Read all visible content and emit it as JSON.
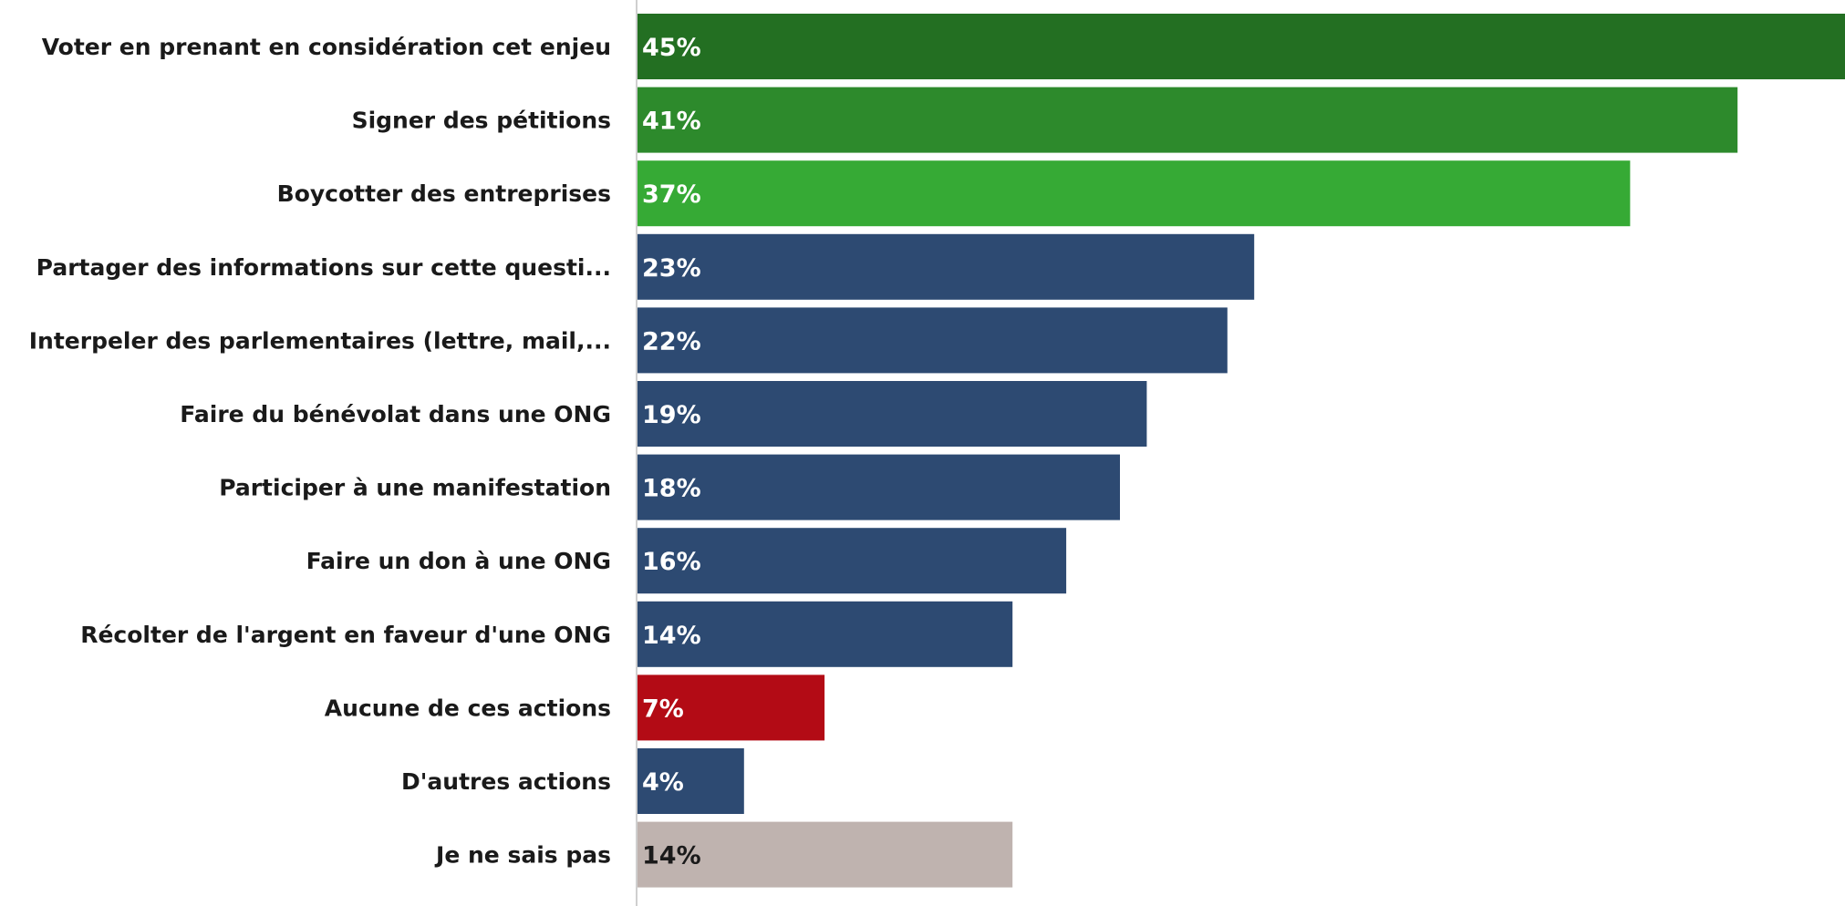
{
  "chart_data": {
    "type": "bar",
    "orientation": "horizontal",
    "categories": [
      "Voter en prenant en considération cet enjeu",
      "Signer des pétitions",
      "Boycotter des entreprises",
      "Partager des informations sur cette questi...",
      "Interpeler des parlementaires (lettre, mail,...",
      "Faire du bénévolat dans une ONG",
      "Participer à une manifestation",
      "Faire un don à une ONG",
      "Récolter de l'argent en faveur d'une ONG",
      "Aucune de ces actions",
      "D'autres actions",
      "Je ne sais pas"
    ],
    "values": [
      45,
      41,
      37,
      23,
      22,
      19,
      18,
      16,
      14,
      7,
      4,
      14
    ],
    "value_labels": [
      "45%",
      "41%",
      "37%",
      "23%",
      "22%",
      "19%",
      "18%",
      "16%",
      "14%",
      "7%",
      "4%",
      "14%"
    ],
    "bar_colors": [
      "#236f22",
      "#2d8a2c",
      "#36aa35",
      "#2d4a72",
      "#2d4a72",
      "#2d4a72",
      "#2d4a72",
      "#2d4a72",
      "#2d4a72",
      "#b30b15",
      "#2d4a72",
      "#bfb3af"
    ],
    "label_colors": [
      "#ffffff",
      "#ffffff",
      "#ffffff",
      "#ffffff",
      "#ffffff",
      "#ffffff",
      "#ffffff",
      "#ffffff",
      "#ffffff",
      "#ffffff",
      "#ffffff",
      "#1a1a1a"
    ],
    "xlim": [
      0,
      45
    ],
    "title": "",
    "xlabel": "",
    "ylabel": "",
    "grid": false,
    "legend": "none"
  }
}
